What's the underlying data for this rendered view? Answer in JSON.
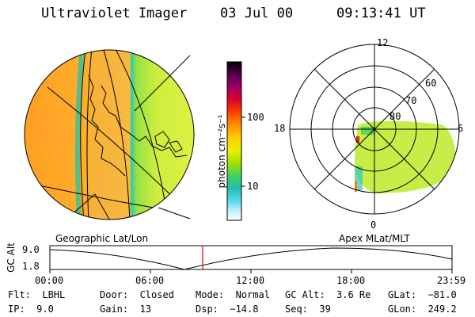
{
  "header": {
    "title": "Ultraviolet Imager",
    "date": "03 Jul 00",
    "time": "09:13:41 UT"
  },
  "colorbar": {
    "label": "photon cm⁻²s⁻¹",
    "ticks": [
      "100",
      "10"
    ],
    "colors": [
      "#000000",
      "#500050",
      "#a00060",
      "#e0002a",
      "#ff4000",
      "#ff9000",
      "#ffd000",
      "#e8f000",
      "#a0e000",
      "#40d060",
      "#20c0b0",
      "#60d8f0",
      "#c0f0f8",
      "#ffffff"
    ]
  },
  "polar": {
    "labels": {
      "top": "12",
      "bottom": "0",
      "left": "18",
      "right": "6"
    },
    "lat_labels": [
      "60",
      "70",
      "80"
    ]
  },
  "subtitles": {
    "left": "Geographic Lat/Lon",
    "right": "Apex MLat/MLT"
  },
  "timeline": {
    "ylabel": "GC Alt",
    "yticks": [
      "9.0",
      "1.8"
    ],
    "xticks": [
      "00:00",
      "06:00",
      "12:00",
      "18:00",
      "23:59"
    ],
    "marker_color": "#e00000"
  },
  "info": {
    "flt": "Flt:  LBHL",
    "ip": "IP:  9.0",
    "door": "Door:  Closed",
    "gain": "Gain:  13",
    "mode": "Mode:  Normal",
    "dsp": "Dsp:  −14.8",
    "gcalt": "GC Alt:  3.6 Re",
    "seq": "Seq:  39",
    "glat": "GLat:  −81.0",
    "glon": "GLon:  249.2"
  }
}
